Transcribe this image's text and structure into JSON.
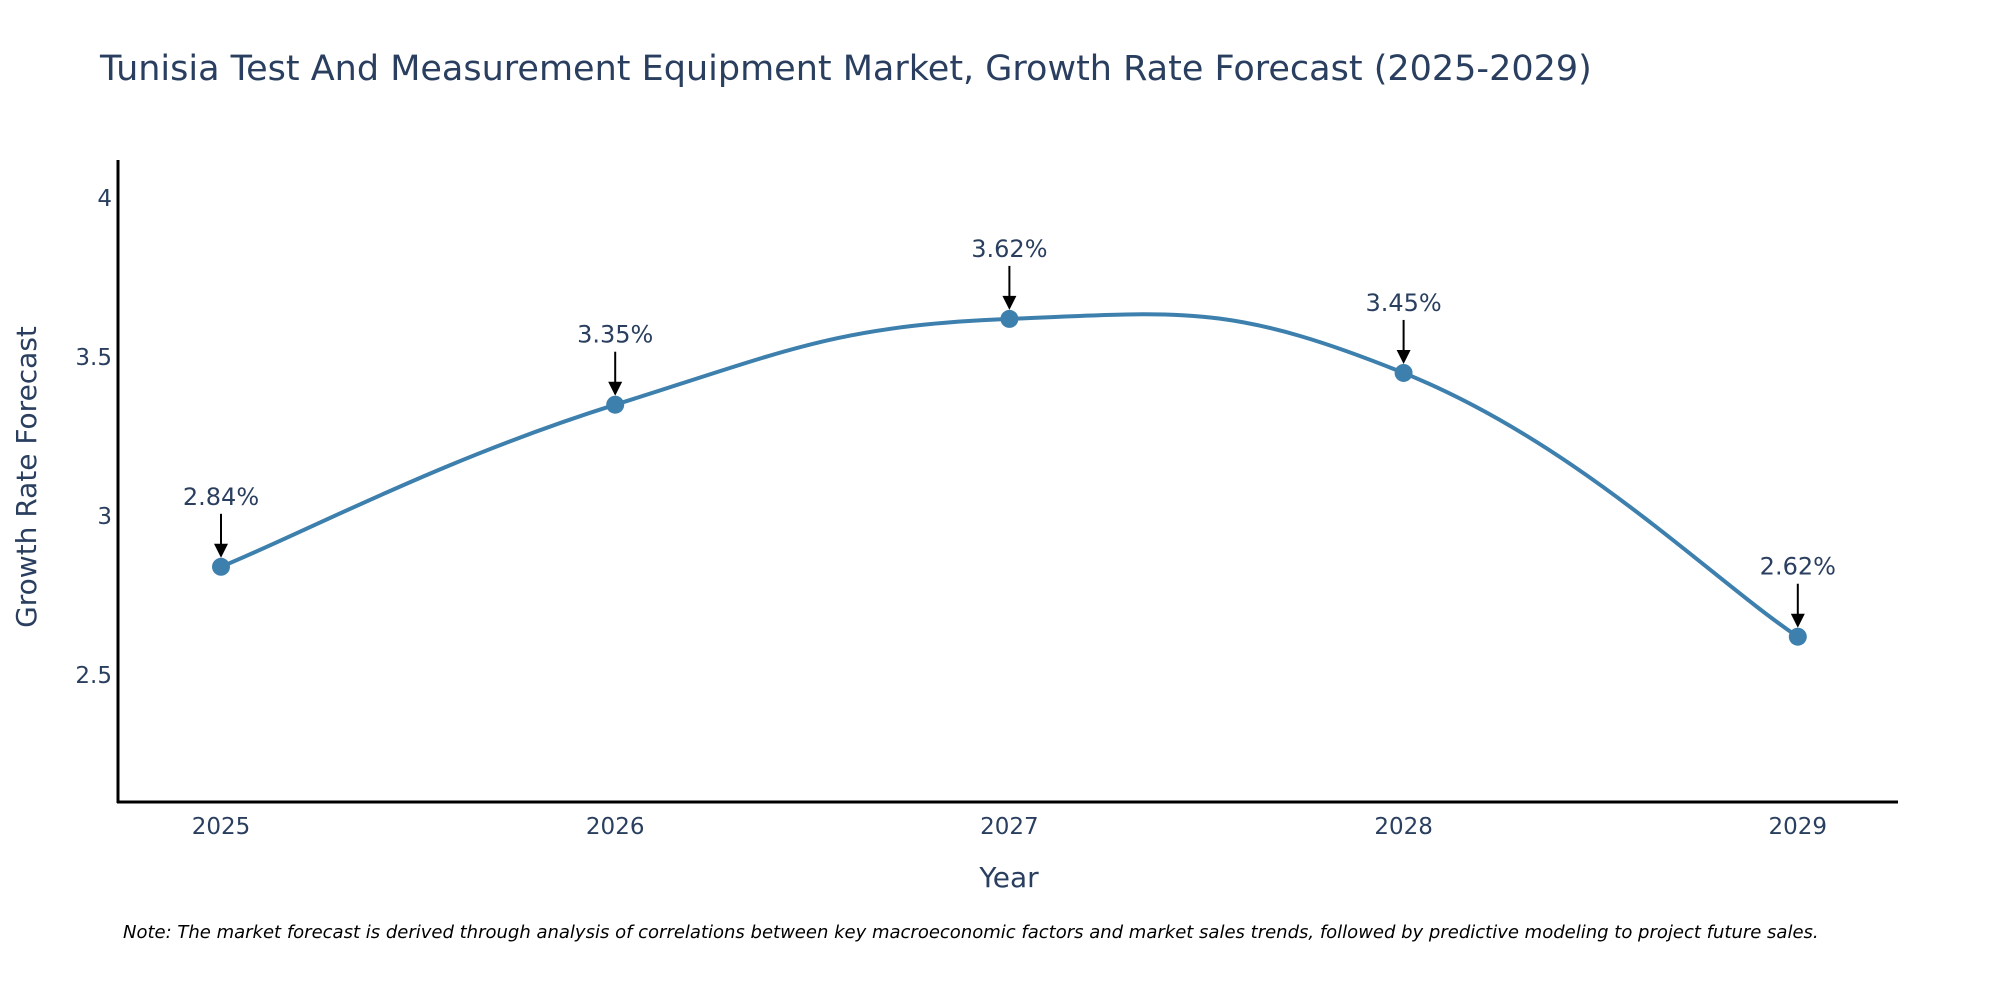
{
  "chart_data": {
    "type": "line",
    "title": "Tunisia Test And Measurement Equipment Market, Growth Rate Forecast (2025-2029)",
    "xlabel": "Year",
    "ylabel": "Growth Rate Forecast",
    "categories": [
      "2025",
      "2026",
      "2027",
      "2028",
      "2029"
    ],
    "series": [
      {
        "name": "Growth Rate Forecast",
        "values": [
          2.84,
          3.35,
          3.62,
          3.45,
          2.62
        ],
        "labels": [
          "2.84%",
          "3.35%",
          "3.62%",
          "3.45%",
          "2.62%"
        ],
        "color": "#3d7fad"
      }
    ],
    "ylim": [
      2.1,
      4.12
    ],
    "yticks": [
      2.5,
      3,
      3.5,
      4
    ],
    "ytick_labels": [
      "2.5",
      "3",
      "3.5",
      "4"
    ],
    "grid": false,
    "axis_color": "#000000",
    "note": "Note: The market forecast is derived through analysis of correlations between key macroeconomic factors and market sales trends, followed by predictive modeling to project future sales."
  }
}
